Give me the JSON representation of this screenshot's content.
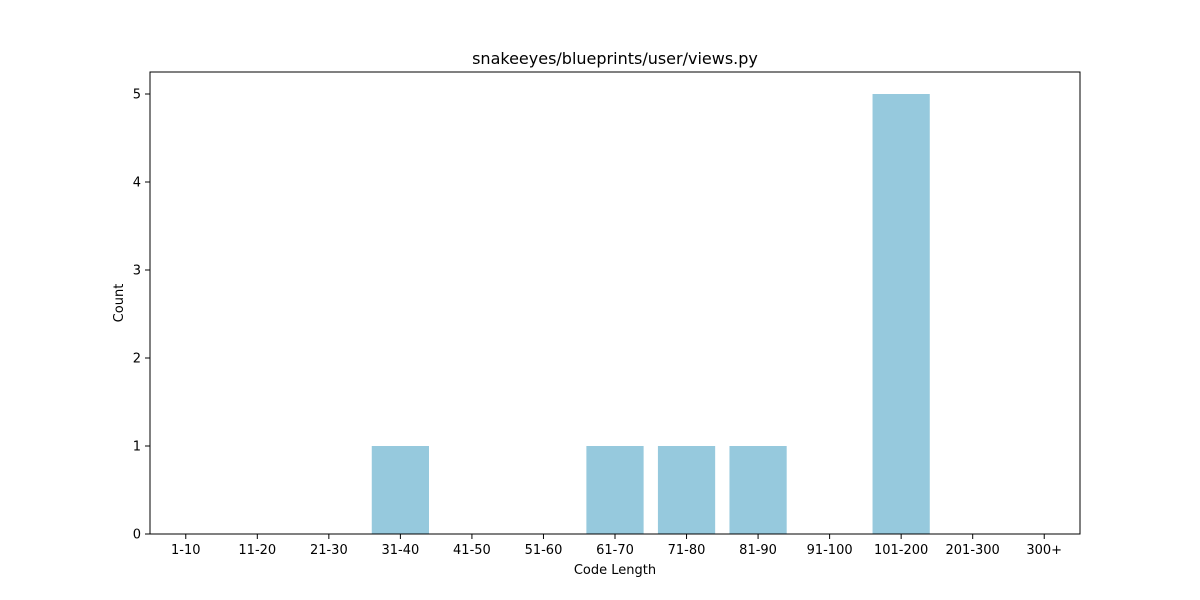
{
  "chart_data": {
    "type": "bar",
    "title": "snakeeyes/blueprints/user/views.py",
    "xlabel": "Code Length",
    "ylabel": "Count",
    "categories": [
      "1-10",
      "11-20",
      "21-30",
      "31-40",
      "41-50",
      "51-60",
      "61-70",
      "71-80",
      "81-90",
      "91-100",
      "101-200",
      "201-300",
      "300+"
    ],
    "values": [
      0,
      0,
      0,
      1,
      0,
      0,
      1,
      1,
      1,
      0,
      5,
      0,
      0
    ],
    "ylim": [
      0,
      5.25
    ],
    "yticks": [
      0,
      1,
      2,
      3,
      4,
      5
    ],
    "bar_color": "#96c9dd",
    "grid": false,
    "legend": "none"
  }
}
